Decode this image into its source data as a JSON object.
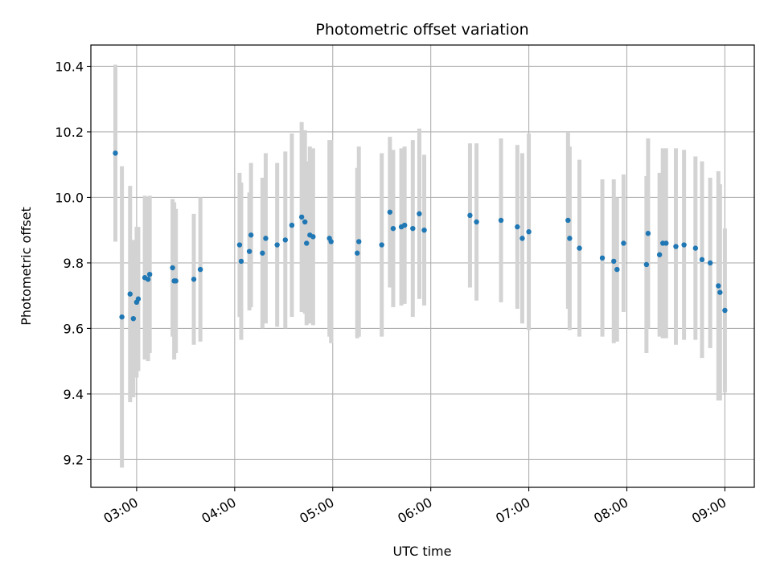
{
  "chart_data": {
    "type": "scatter",
    "title": "Photometric offset variation",
    "xlabel": "UTC time",
    "ylabel": "Photometric offset",
    "x_is_time": true,
    "xlim": [
      "02:32",
      "09:18"
    ],
    "ylim": [
      9.115,
      10.465
    ],
    "grid": true,
    "x_ticks": [
      "03:00",
      "04:00",
      "05:00",
      "06:00",
      "07:00",
      "08:00",
      "09:00"
    ],
    "y_ticks": [
      9.2,
      9.4,
      9.6,
      9.8,
      10.0,
      10.2,
      10.4
    ],
    "colors": {
      "points": "#1f77b4",
      "errorbars": "#d3d3d3",
      "grid": "#b0b0b0"
    },
    "series": [
      {
        "x": [
          "02:47",
          "02:51",
          "02:56",
          "02:58",
          "03:00",
          "03:01",
          "03:05",
          "03:07",
          "03:08",
          "03:22",
          "03:23",
          "03:24",
          "03:35",
          "03:39",
          "04:03",
          "04:04",
          "04:09",
          "04:10",
          "04:17",
          "04:19",
          "04:26",
          "04:31",
          "04:35",
          "04:41",
          "04:43",
          "04:44",
          "04:46",
          "04:48",
          "04:58",
          "04:59",
          "05:15",
          "05:16",
          "05:30",
          "05:35",
          "05:37",
          "05:42",
          "05:44",
          "05:49",
          "05:53",
          "05:56",
          "06:24",
          "06:28",
          "06:43",
          "06:53",
          "06:56",
          "07:00",
          "07:24",
          "07:25",
          "07:31",
          "07:45",
          "07:52",
          "07:54",
          "07:58",
          "08:12",
          "08:13",
          "08:20",
          "08:22",
          "08:24",
          "08:30",
          "08:35",
          "08:42",
          "08:46",
          "08:51",
          "08:56",
          "08:57",
          "09:00"
        ],
        "y": [
          10.135,
          9.635,
          9.705,
          9.63,
          9.68,
          9.69,
          9.755,
          9.75,
          9.765,
          9.785,
          9.745,
          9.745,
          9.75,
          9.78,
          9.855,
          9.805,
          9.835,
          9.885,
          9.83,
          9.875,
          9.855,
          9.87,
          9.915,
          9.94,
          9.925,
          9.86,
          9.885,
          9.88,
          9.875,
          9.865,
          9.83,
          9.865,
          9.855,
          9.955,
          9.905,
          9.91,
          9.915,
          9.905,
          9.95,
          9.9,
          9.945,
          9.925,
          9.93,
          9.91,
          9.875,
          9.895,
          9.93,
          9.875,
          9.845,
          9.815,
          9.805,
          9.78,
          9.86,
          9.795,
          9.89,
          9.825,
          9.86,
          9.86,
          9.85,
          9.855,
          9.845,
          9.81,
          9.8,
          9.73,
          9.71,
          9.655
        ],
        "err": [
          0.27,
          0.46,
          0.33,
          0.24,
          0.23,
          0.22,
          0.25,
          0.25,
          0.24,
          0.21,
          0.24,
          0.22,
          0.2,
          0.22,
          0.22,
          0.24,
          0.18,
          0.22,
          0.23,
          0.26,
          0.25,
          0.27,
          0.28,
          0.29,
          0.28,
          0.25,
          0.27,
          0.27,
          0.3,
          0.31,
          0.26,
          0.29,
          0.28,
          0.23,
          0.24,
          0.24,
          0.24,
          0.27,
          0.26,
          0.23,
          0.22,
          0.24,
          0.25,
          0.25,
          0.26,
          0.3,
          0.27,
          0.28,
          0.27,
          0.24,
          0.25,
          0.22,
          0.21,
          0.27,
          0.29,
          0.25,
          0.29,
          0.29,
          0.3,
          0.29,
          0.28,
          0.3,
          0.26,
          0.35,
          0.33,
          0.25
        ]
      }
    ]
  }
}
